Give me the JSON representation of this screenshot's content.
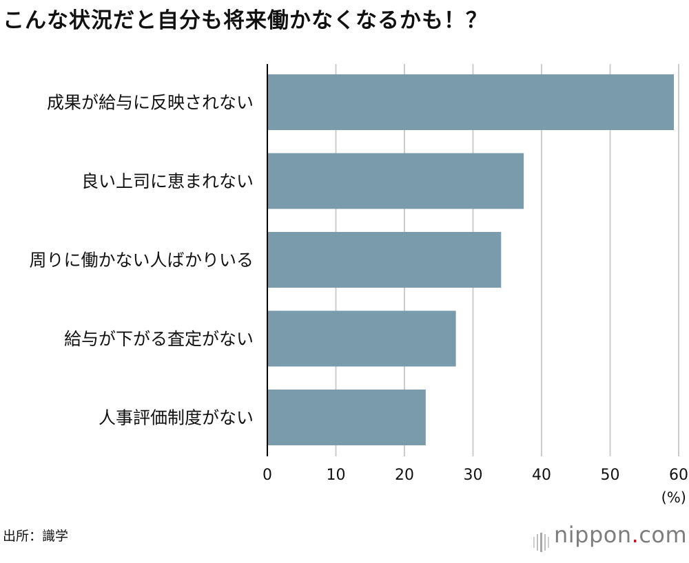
{
  "title": "こんな状況だと自分も将来働かなくなるかも！？",
  "source": "出所：識学",
  "logo": {
    "name": "nippon",
    "dot": ".",
    "tld": "com",
    "dot_color": "#c8102e"
  },
  "colors": {
    "bar": "#7a9bab",
    "grid": "#cccccc",
    "axis": "#000000",
    "text": "#111111"
  },
  "chart_data": {
    "type": "bar",
    "orientation": "horizontal",
    "categories": [
      "成果が給与に反映されない",
      "良い上司に恵まれない",
      "周りに働かない人ばかりいる",
      "給与が下がる査定がない",
      "人事評価制度がない"
    ],
    "values": [
      59.3,
      37.4,
      34.1,
      27.5,
      23.1
    ],
    "xlim": [
      0,
      60
    ],
    "xticks": [
      "0",
      "10",
      "20",
      "30",
      "40",
      "50",
      "60"
    ],
    "unit_label": "(%)",
    "grid": true
  }
}
